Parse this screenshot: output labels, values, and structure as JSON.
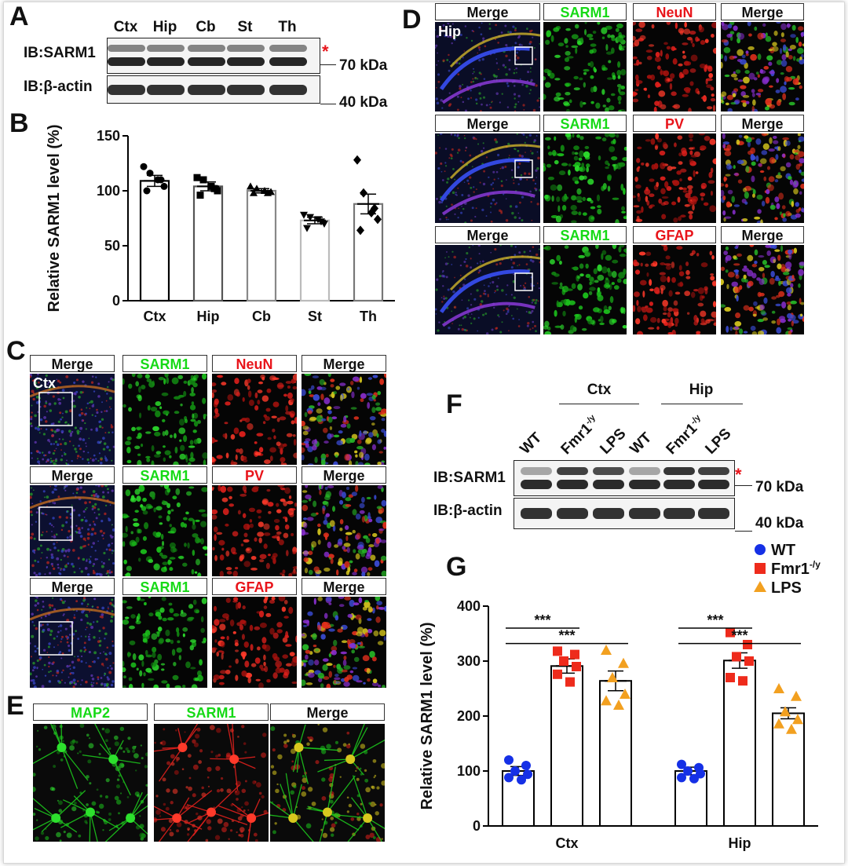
{
  "panels": {
    "A": {
      "label": "A",
      "lanes": [
        "Ctx",
        "Hip",
        "Cb",
        "St",
        "Th"
      ],
      "ib_top": "IB:SARM1",
      "ib_bottom": "IB:β-actin",
      "marker_top": "70 kDa",
      "marker_bottom": "40 kDa",
      "asterisk": "*"
    },
    "B": {
      "label": "B"
    },
    "C": {
      "label": "C",
      "region": "Ctx",
      "rows": [
        [
          "Merge",
          "SARM1",
          "NeuN",
          "Merge"
        ],
        [
          "Merge",
          "SARM1",
          "PV",
          "Merge"
        ],
        [
          "Merge",
          "SARM1",
          "GFAP",
          "Merge"
        ]
      ]
    },
    "D": {
      "label": "D",
      "region": "Hip",
      "rows": [
        [
          "Merge",
          "SARM1",
          "NeuN",
          "Merge"
        ],
        [
          "Merge",
          "SARM1",
          "PV",
          "Merge"
        ],
        [
          "Merge",
          "SARM1",
          "GFAP",
          "Merge"
        ]
      ]
    },
    "E": {
      "label": "E",
      "headers": [
        "MAP2",
        "SARM1",
        "Merge"
      ]
    },
    "F": {
      "label": "F",
      "group_ctx": "Ctx",
      "group_hip": "Hip",
      "lane_wt": "WT",
      "lane_fmr": "Fmr1",
      "lane_fmr_sup": "-/y",
      "lane_lps": "LPS",
      "ib_top": "IB:SARM1",
      "ib_bottom": "IB:β-actin",
      "marker_top": "70 kDa",
      "marker_bottom": "40 kDa",
      "asterisk": "*"
    },
    "G": {
      "label": "G",
      "sig": "***"
    }
  },
  "colors": {
    "green": "#16d916",
    "red": "#e8141a",
    "wt": "#1530e6",
    "fmr": "#ee2b1c",
    "lps": "#f2a020"
  },
  "chart_data": [
    {
      "id": "B",
      "type": "bar",
      "categories": [
        "Ctx",
        "Hip",
        "Cb",
        "St",
        "Th"
      ],
      "values": [
        109,
        104,
        100,
        73,
        88
      ],
      "errors": [
        5,
        4,
        2,
        3,
        9
      ],
      "bar_edge_colors": [
        "#000000",
        "#555555",
        "#888888",
        "#bbbbbb",
        "#777777"
      ],
      "markers": [
        "circle",
        "square",
        "triangle",
        "triangle-down",
        "diamond"
      ],
      "points": [
        [
          122,
          116,
          110,
          104,
          100,
          110
        ],
        [
          112,
          110,
          104,
          100,
          96,
          102
        ],
        [
          104,
          102,
          100,
          99,
          98,
          98
        ],
        [
          78,
          76,
          74,
          70,
          66,
          72
        ],
        [
          128,
          98,
          80,
          74,
          64,
          84
        ]
      ],
      "ylabel": "Relative SARM1 level (%)",
      "ylim": [
        0,
        150
      ],
      "yticks": [
        0,
        50,
        100,
        150
      ]
    },
    {
      "id": "G",
      "type": "bar",
      "categories": [
        "Ctx",
        "Hip"
      ],
      "series": [
        {
          "name": "WT",
          "values": [
            100,
            100
          ],
          "errors": [
            8,
            7
          ],
          "points": [
            [
              120,
              110,
              100,
              94,
              88,
              84
            ],
            [
              112,
              106,
              100,
              95,
              88,
              86
            ]
          ]
        },
        {
          "name": "Fmr1",
          "name_sup": "-/y",
          "values": [
            291,
            301
          ],
          "errors": [
            13,
            14
          ],
          "points": [
            [
              318,
              312,
              300,
              290,
              276,
              262
            ],
            [
              352,
              330,
              308,
              300,
              270,
              264
            ]
          ]
        },
        {
          "name": "LPS",
          "values": [
            264,
            205
          ],
          "errors": [
            18,
            10
          ],
          "points": [
            [
              320,
              296,
              270,
              240,
              228,
              220
            ],
            [
              250,
              236,
              208,
              194,
              186,
              176
            ]
          ]
        }
      ],
      "ylabel": "Relative SARM1 level (%)",
      "ylim": [
        0,
        400
      ],
      "yticks": [
        0,
        100,
        200,
        300,
        400
      ],
      "legend": "top-right",
      "significance": [
        {
          "group": "Ctx",
          "from": "WT",
          "to": "Fmr1",
          "label": "***"
        },
        {
          "group": "Ctx",
          "from": "WT",
          "to": "LPS",
          "label": "***"
        },
        {
          "group": "Hip",
          "from": "WT",
          "to": "Fmr1",
          "label": "***"
        },
        {
          "group": "Hip",
          "from": "WT",
          "to": "LPS",
          "label": "***"
        }
      ]
    }
  ]
}
